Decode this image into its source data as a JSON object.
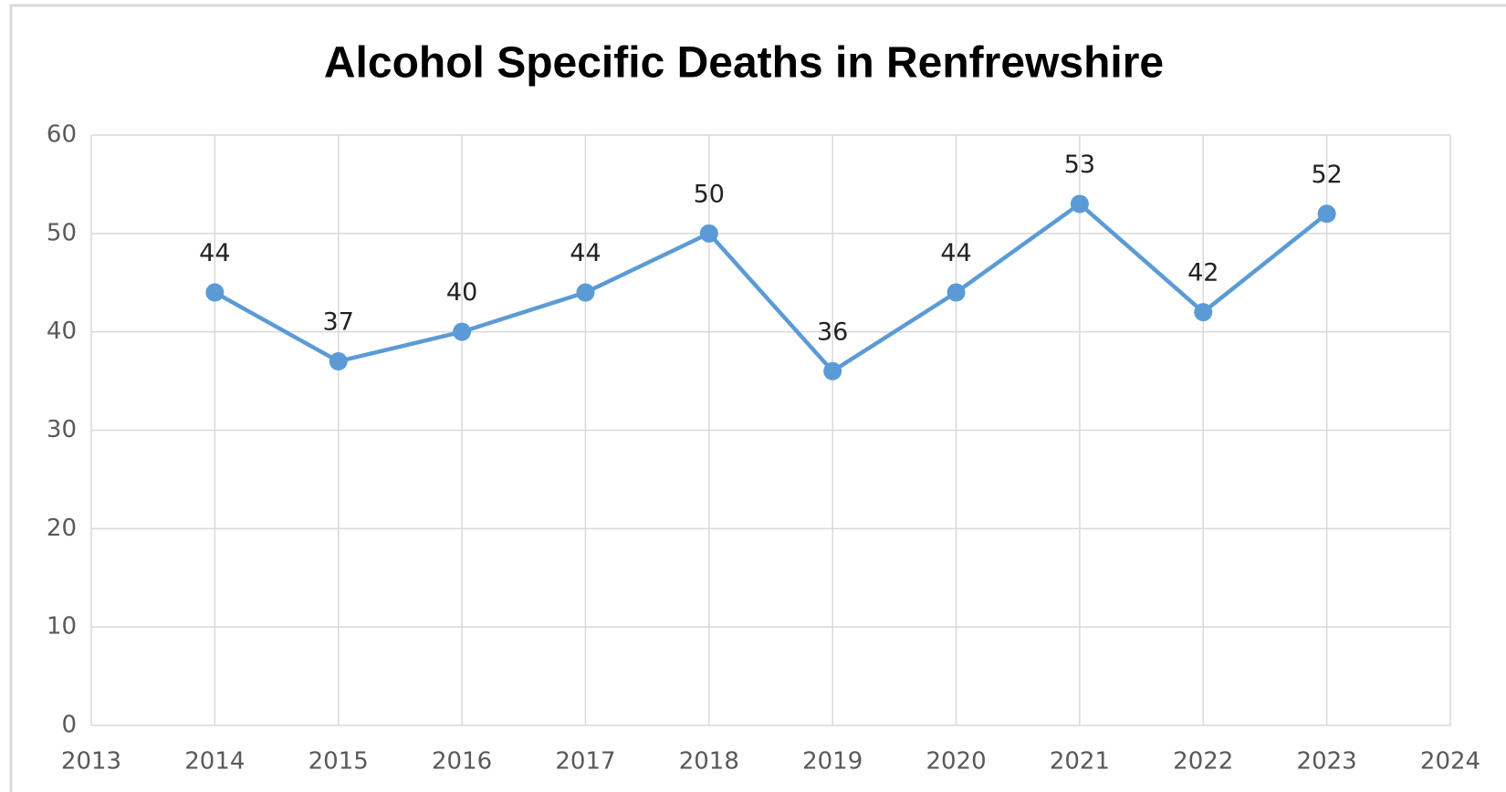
{
  "chart_data": {
    "type": "line",
    "title": "Alcohol Specific Deaths in Renfrewshire",
    "x": [
      2014,
      2015,
      2016,
      2017,
      2018,
      2019,
      2020,
      2021,
      2022,
      2023
    ],
    "series": [
      {
        "name": "Alcohol Specific Deaths",
        "color": "#5b9bd5",
        "values": [
          44,
          37,
          40,
          44,
          50,
          36,
          44,
          53,
          42,
          52
        ]
      }
    ],
    "xlim": [
      2013,
      2024
    ],
    "xticks": [
      2013,
      2014,
      2015,
      2016,
      2017,
      2018,
      2019,
      2020,
      2021,
      2022,
      2023,
      2024
    ],
    "ylim": [
      0,
      60
    ],
    "yticks": [
      0,
      10,
      20,
      30,
      40,
      50,
      60
    ],
    "grid": true,
    "legend": false
  }
}
